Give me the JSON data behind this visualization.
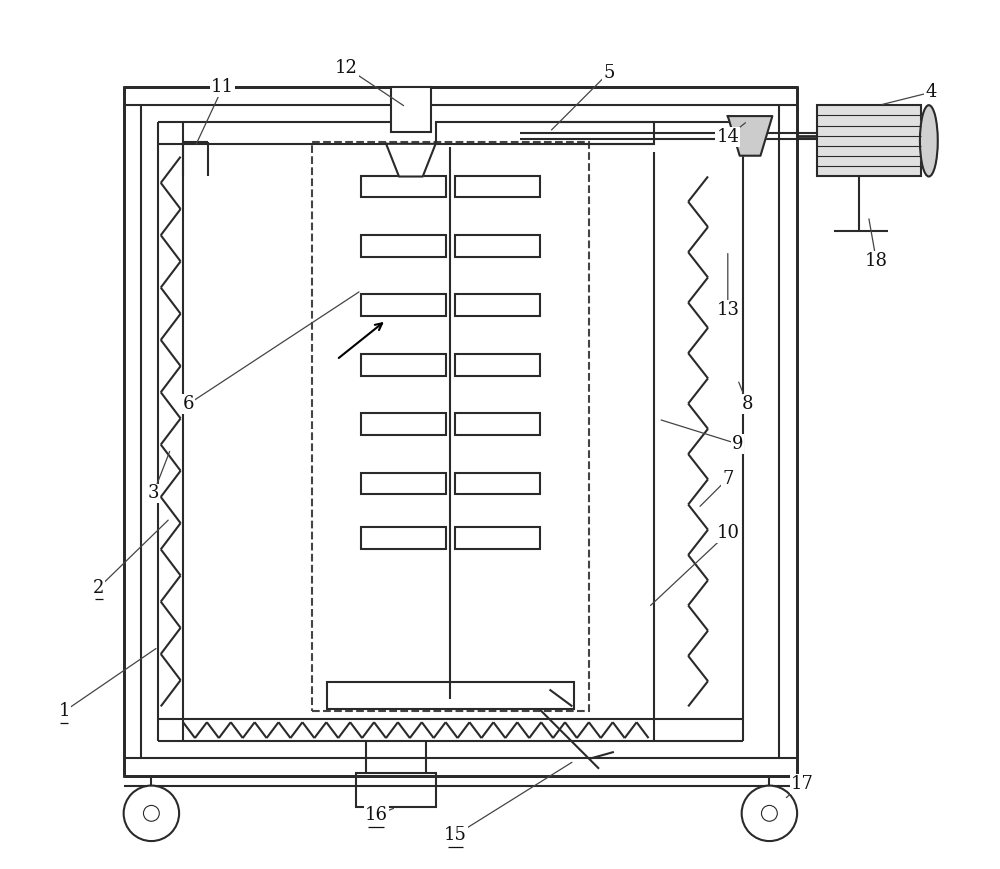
{
  "bg_color": "#ffffff",
  "line_color": "#2a2a2a",
  "lw_heavy": 2.0,
  "lw_med": 1.5,
  "lw_light": 1.0,
  "fig_width": 10.0,
  "fig_height": 8.69
}
